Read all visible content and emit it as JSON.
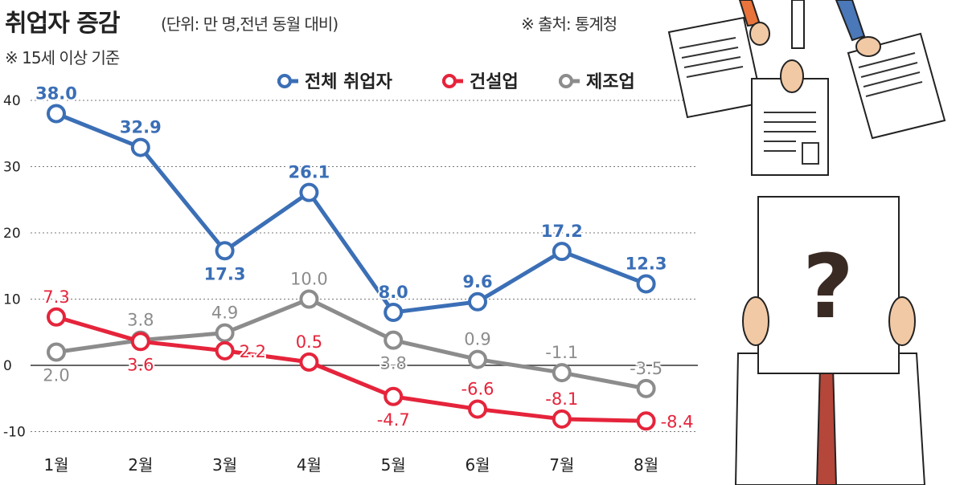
{
  "chart_data": {
    "type": "line",
    "title": "취업자 증감",
    "subtitle": "(단위: 만 명,전년 동월 대비)",
    "note": "※ 15세 이상 기준",
    "source": "※ 출처: 통계청",
    "categories": [
      "1월",
      "2월",
      "3월",
      "4월",
      "5월",
      "6월",
      "7월",
      "8월"
    ],
    "yticks": [
      40,
      30,
      20,
      10,
      0,
      -10
    ],
    "ylim": [
      -10,
      40
    ],
    "grid": true,
    "legend_position": "top-right",
    "series": [
      {
        "name": "전체 취업자",
        "color": "#3b6fb6",
        "values": [
          38.0,
          32.9,
          17.3,
          26.1,
          8.0,
          9.6,
          17.2,
          12.3
        ],
        "label_pos": [
          "above",
          "above",
          "below",
          "above",
          "above",
          "above",
          "above",
          "above"
        ]
      },
      {
        "name": "건설업",
        "color": "#e5243b",
        "values": [
          7.3,
          3.6,
          2.2,
          0.5,
          -4.7,
          -6.6,
          -8.1,
          -8.4
        ],
        "label_pos": [
          "above",
          "below",
          "right",
          "above",
          "below",
          "above",
          "above",
          "right"
        ]
      },
      {
        "name": "제조업",
        "color": "#8c8c8c",
        "values": [
          2.0,
          3.8,
          4.9,
          10.0,
          3.8,
          0.9,
          -1.1,
          -3.5
        ],
        "label_pos": [
          "below",
          "above",
          "above",
          "above",
          "below",
          "above",
          "above",
          "above"
        ]
      }
    ]
  }
}
